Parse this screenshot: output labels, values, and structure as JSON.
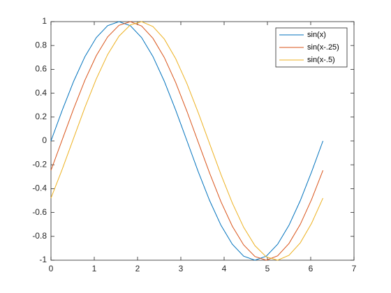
{
  "chart_data": {
    "type": "line",
    "x": [
      0,
      0.262,
      0.524,
      0.785,
      1.047,
      1.309,
      1.571,
      1.833,
      2.094,
      2.356,
      2.618,
      2.88,
      3.142,
      3.403,
      3.665,
      3.927,
      4.189,
      4.451,
      4.712,
      4.974,
      5.236,
      5.498,
      5.76,
      6.021,
      6.283
    ],
    "series": [
      {
        "name": "sin(x)",
        "color": "#0072bd",
        "values": [
          0,
          0.259,
          0.5,
          0.707,
          0.866,
          0.966,
          1,
          0.966,
          0.866,
          0.707,
          0.5,
          0.259,
          0,
          -0.259,
          -0.5,
          -0.707,
          -0.866,
          -0.966,
          -1,
          -0.966,
          -0.866,
          -0.707,
          -0.5,
          -0.259,
          0
        ]
      },
      {
        "name": "sin(x-.25)",
        "color": "#d95319",
        "values": [
          -0.247,
          0.012,
          0.27,
          0.51,
          0.715,
          0.872,
          0.969,
          1.0,
          0.963,
          0.86,
          0.699,
          0.49,
          0.247,
          -0.012,
          -0.27,
          -0.51,
          -0.715,
          -0.872,
          -0.969,
          -1.0,
          -0.963,
          -0.86,
          -0.699,
          -0.49,
          -0.247
        ]
      },
      {
        "name": "sin(x-.5)",
        "color": "#edb120",
        "values": [
          -0.479,
          -0.236,
          0.024,
          0.282,
          0.52,
          0.724,
          0.878,
          0.972,
          1.0,
          0.959,
          0.854,
          0.69,
          0.479,
          0.236,
          -0.024,
          -0.282,
          -0.52,
          -0.724,
          -0.878,
          -0.972,
          -1.0,
          -0.959,
          -0.854,
          -0.69,
          -0.479
        ]
      }
    ],
    "xlim": [
      0,
      7
    ],
    "xticks": [
      0,
      1,
      2,
      3,
      4,
      5,
      6,
      7
    ],
    "ylim": [
      -1,
      1
    ],
    "yticks": [
      -1,
      -0.8,
      -0.6,
      -0.4,
      -0.2,
      0,
      0.2,
      0.4,
      0.6,
      0.8,
      1
    ],
    "grid": false,
    "legend": "northeast"
  }
}
